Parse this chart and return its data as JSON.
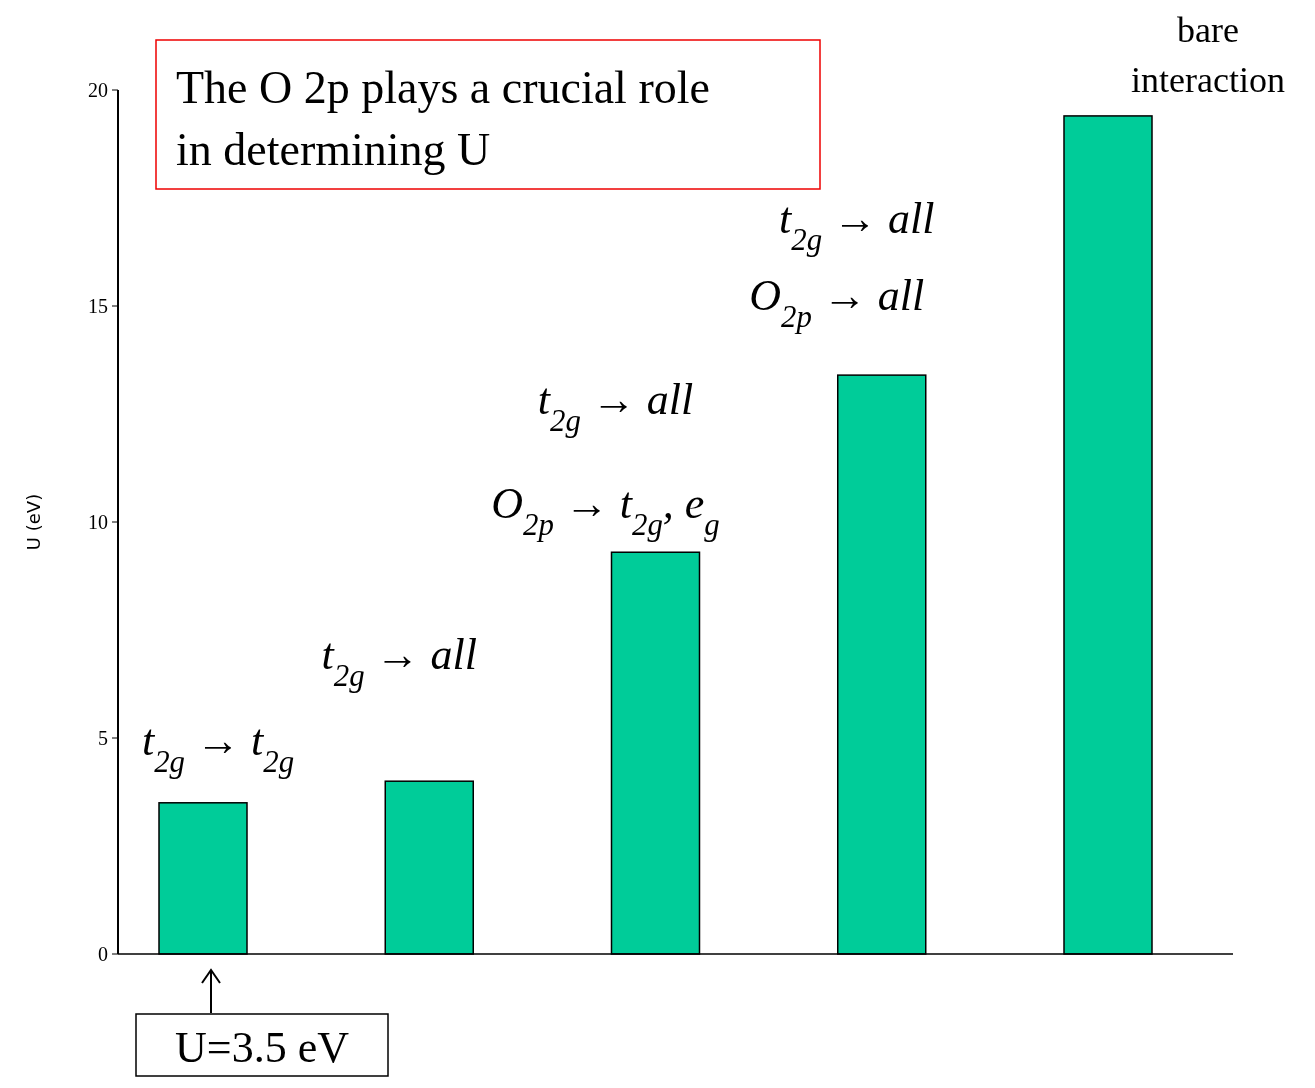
{
  "chart_data": {
    "type": "bar",
    "ylabel": "U (eV)",
    "categories": [
      null,
      null,
      null,
      null,
      null
    ],
    "values": [
      3.5,
      4.0,
      9.3,
      13.4,
      19.4
    ],
    "color": "#00cc99",
    "ylim": [
      0,
      20
    ],
    "yticks": [
      0,
      5,
      10,
      15,
      20
    ],
    "grid": false,
    "annotations": [
      "The O 2p plays a crucial role in determining U",
      "t$_{2g}$ → t$_{2g}$",
      "t$_{2g}$ → all",
      "t$_{2g}$ → all",
      "O$_{2p}$ → t$_{2g}$, e$_{g}$",
      "t$_{2g}$ → all",
      "O$_{2p}$ → all",
      "bare interaction",
      "U=3.5 eV"
    ]
  }
}
